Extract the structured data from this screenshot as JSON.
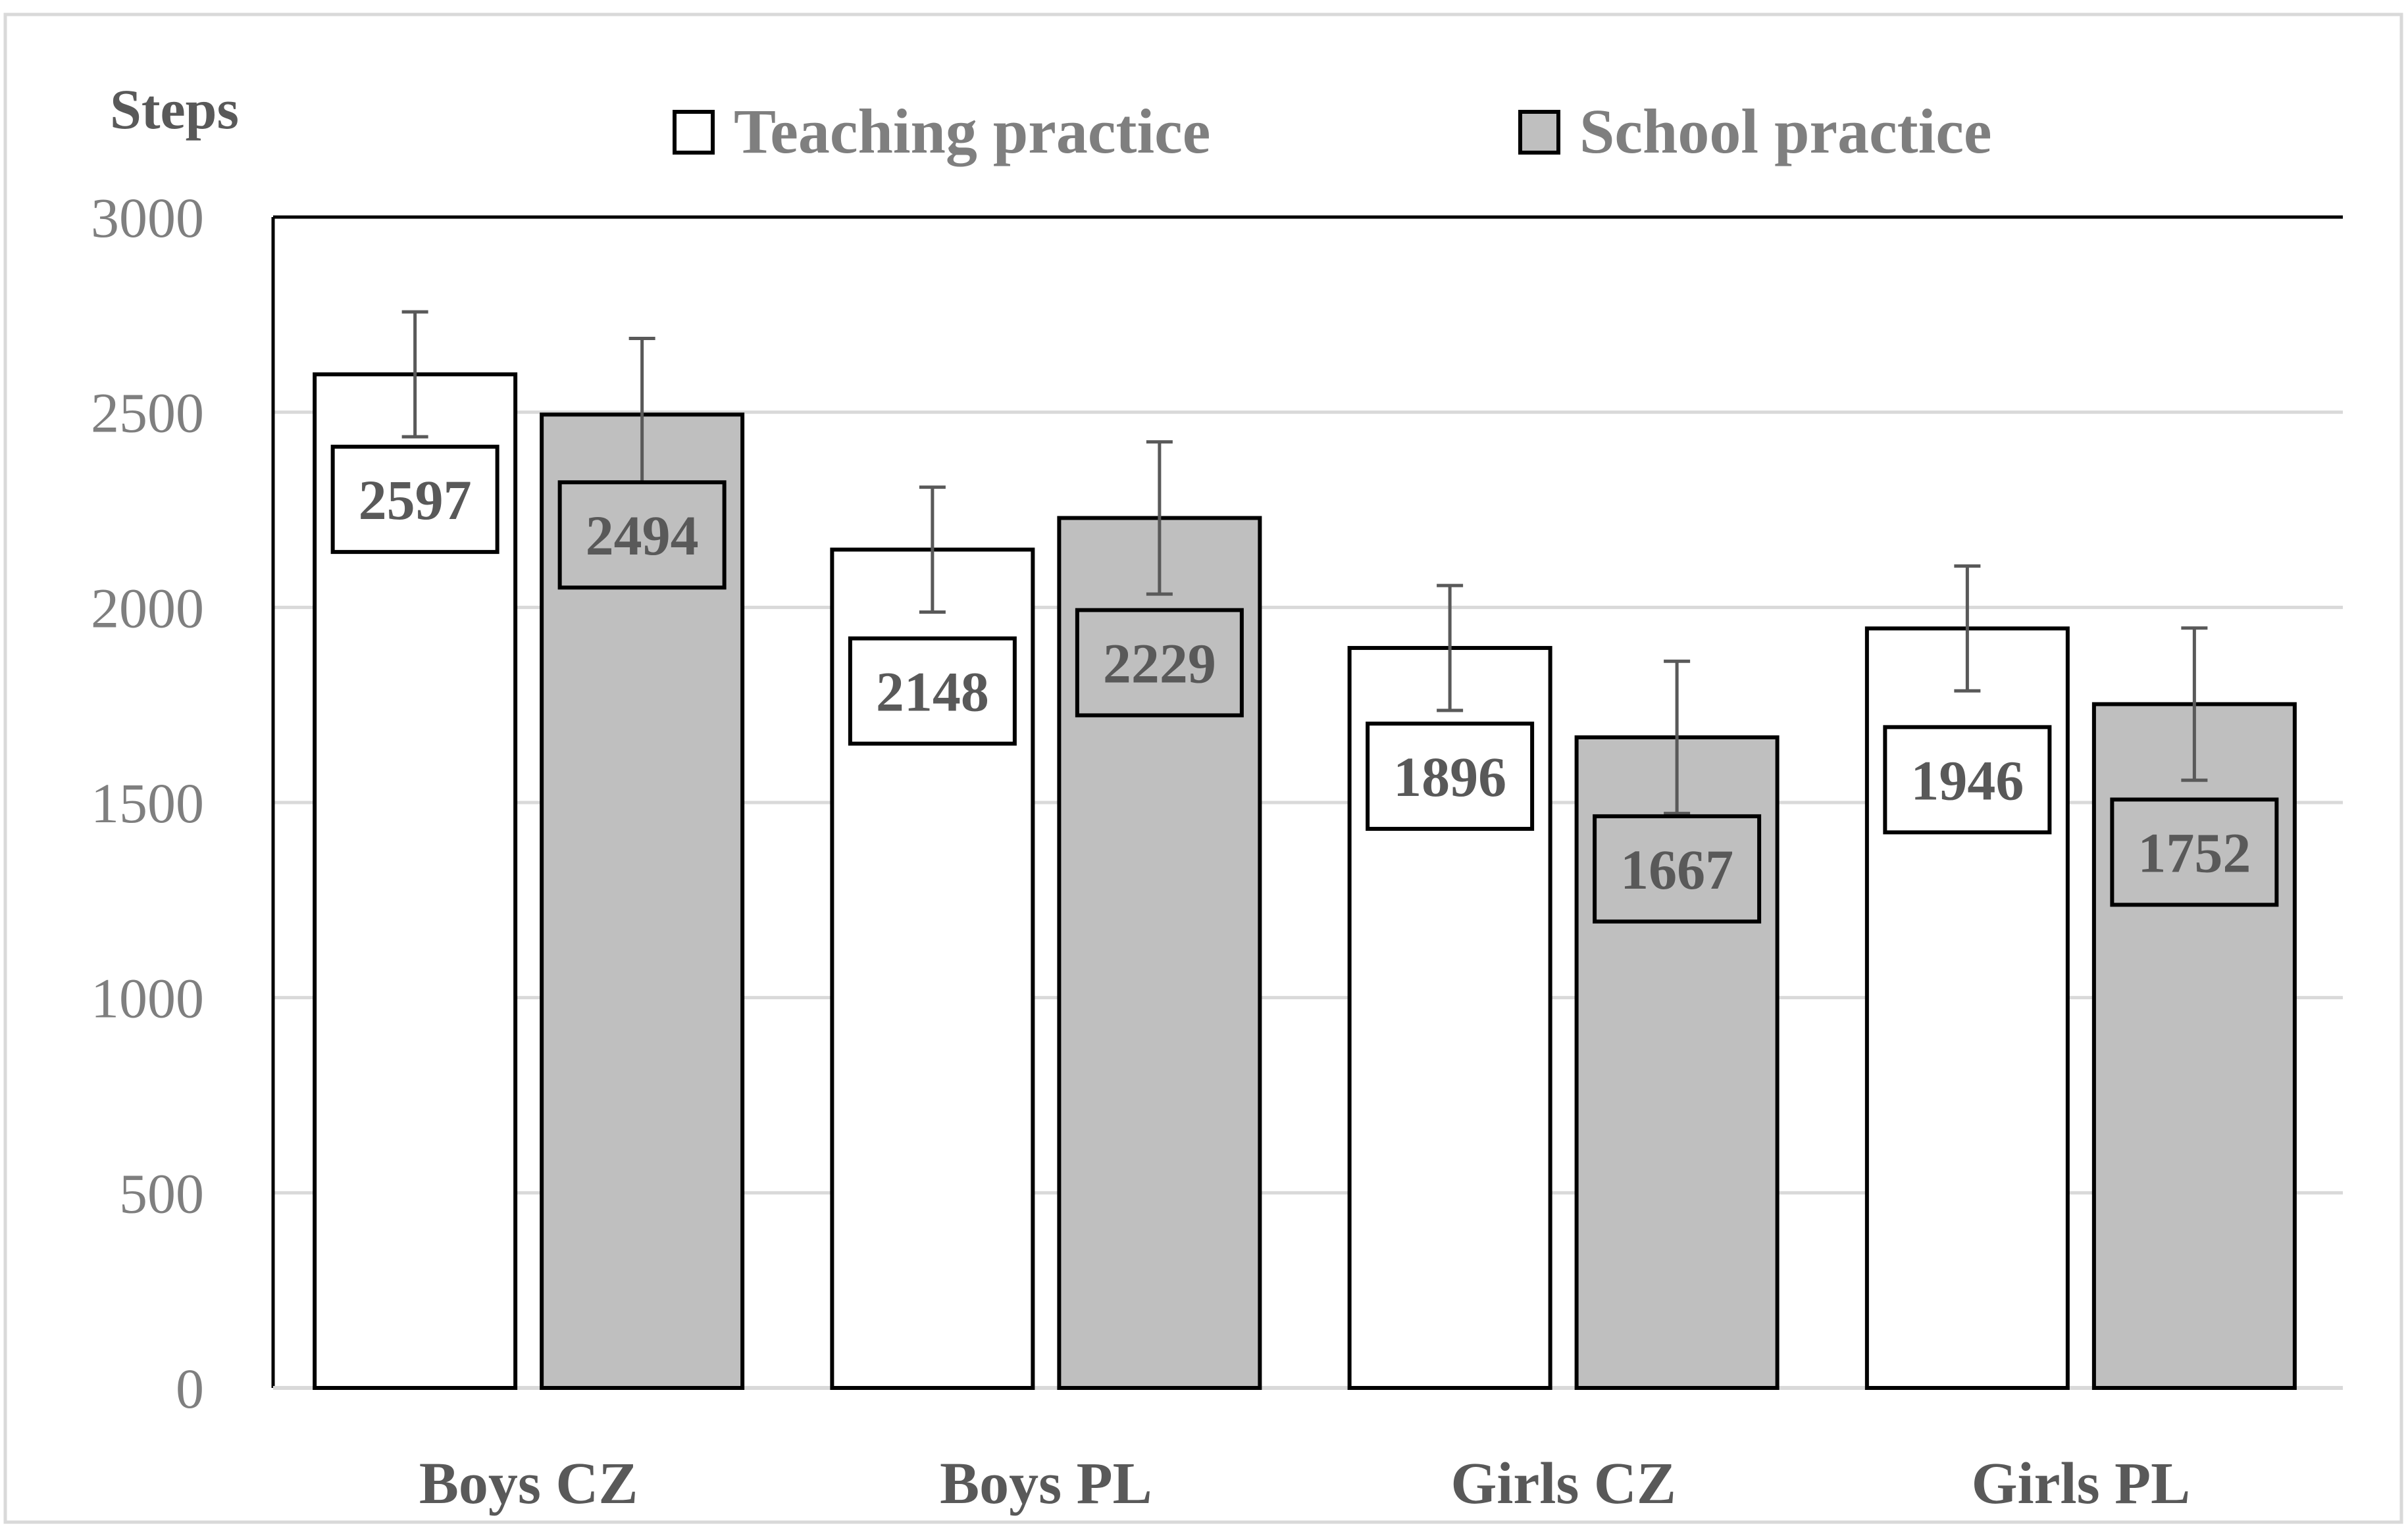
{
  "chart_data": {
    "type": "bar",
    "title": "",
    "xlabel": "",
    "ylabel": "Steps",
    "ylim": [
      0,
      3000
    ],
    "yticks": [
      0,
      500,
      1000,
      1500,
      2000,
      2500,
      3000
    ],
    "grid": true,
    "legend_position": "top",
    "categories": [
      "Boys CZ",
      "Boys PL",
      "Girls CZ",
      "Girls PL"
    ],
    "series": [
      {
        "name": "Teaching practice",
        "color": "#ffffff",
        "values": [
          2597,
          2148,
          1896,
          1946
        ],
        "error": [
          160,
          160,
          160,
          160
        ]
      },
      {
        "name": "School practice",
        "color": "#bfbfbf",
        "values": [
          2494,
          2229,
          1667,
          1752
        ],
        "error": [
          195,
          195,
          195,
          195
        ]
      }
    ]
  },
  "colors": {
    "grid": "#d9d9d9",
    "bar_outline": "#000000",
    "error_bar": "#595959",
    "frame": "#d9d9d9"
  }
}
